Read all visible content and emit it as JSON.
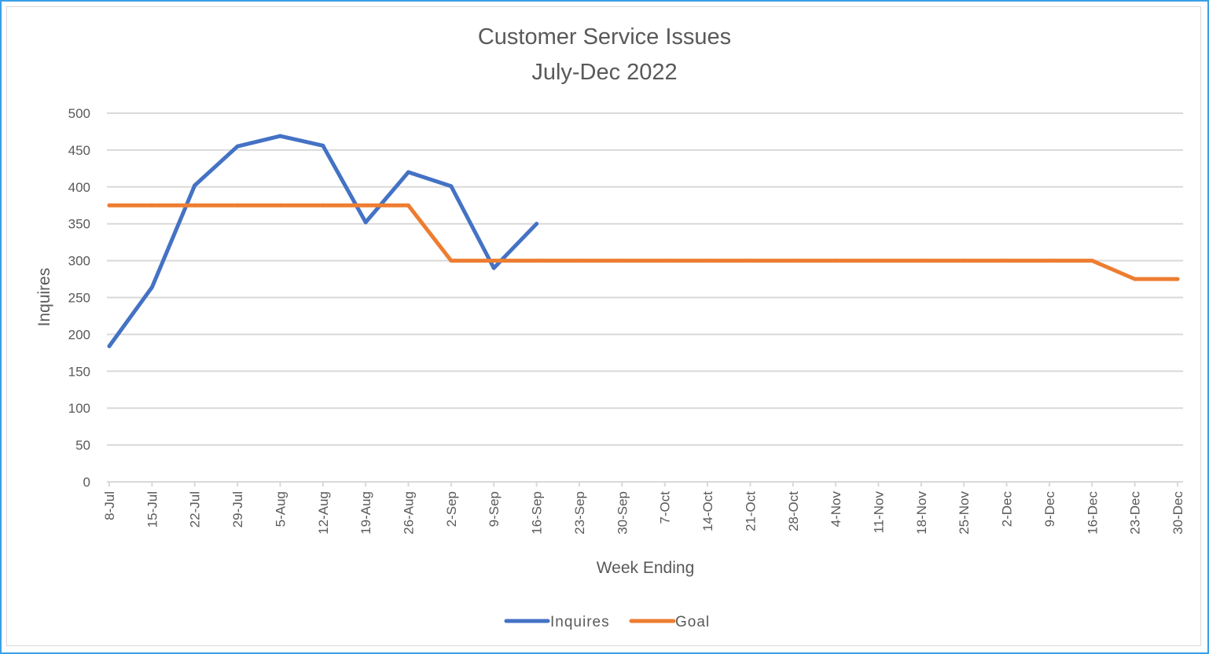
{
  "chart_data": {
    "type": "line",
    "title": [
      "Customer Service Issues",
      "July-Dec 2022"
    ],
    "xlabel": "Week Ending",
    "ylabel": "Inquires",
    "ylim": [
      0,
      500
    ],
    "yticks": [
      0,
      50,
      100,
      150,
      200,
      250,
      300,
      350,
      400,
      450,
      500
    ],
    "grid": true,
    "legend_position": "bottom",
    "categories": [
      "8-Jul",
      "15-Jul",
      "22-Jul",
      "29-Jul",
      "5-Aug",
      "12-Aug",
      "19-Aug",
      "26-Aug",
      "2-Sep",
      "9-Sep",
      "16-Sep",
      "23-Sep",
      "30-Sep",
      "7-Oct",
      "14-Oct",
      "21-Oct",
      "28-Oct",
      "4-Nov",
      "11-Nov",
      "18-Nov",
      "25-Nov",
      "2-Dec",
      "9-Dec",
      "16-Dec",
      "23-Dec",
      "30-Dec"
    ],
    "series": [
      {
        "name": "Inquires",
        "color": "#4472c4",
        "values": [
          184,
          264,
          402,
          455,
          469,
          456,
          352,
          420,
          401,
          290,
          350,
          null,
          null,
          null,
          null,
          null,
          null,
          null,
          null,
          null,
          null,
          null,
          null,
          null,
          null,
          null
        ]
      },
      {
        "name": "Goal",
        "color": "#ed7d31",
        "values": [
          375,
          375,
          375,
          375,
          375,
          375,
          375,
          375,
          300,
          300,
          300,
          300,
          300,
          300,
          300,
          300,
          300,
          300,
          300,
          300,
          300,
          300,
          300,
          300,
          275,
          275
        ]
      }
    ]
  },
  "style": {
    "gridline_color": "#d9d9d9",
    "text_color": "#595959",
    "frame_color": "#3aa0e8"
  }
}
